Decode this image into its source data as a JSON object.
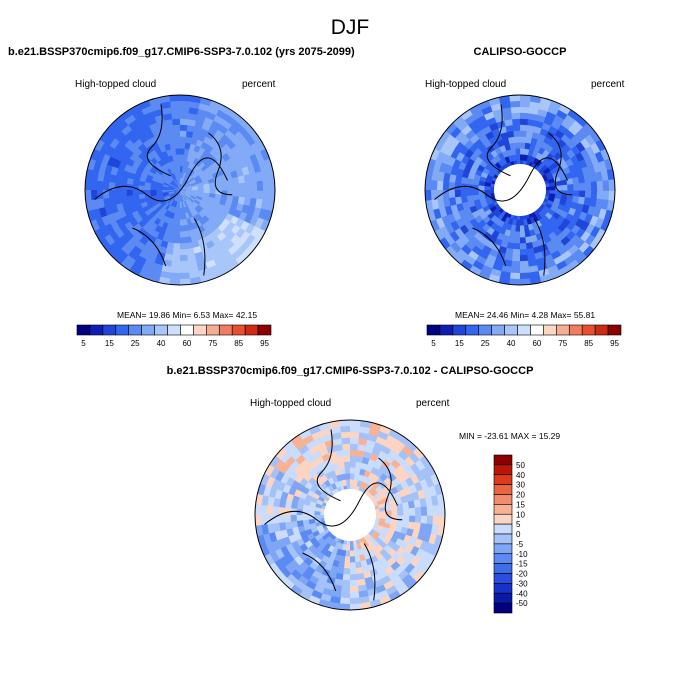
{
  "figure": {
    "title": "DJF"
  },
  "colors": {
    "base_palette": [
      "#000080",
      "#0e1eb4",
      "#1f46d8",
      "#3366f0",
      "#5a8af2",
      "#82aaf6",
      "#a8c6fa",
      "#cfe0fc",
      "#ffffff",
      "#fbd6c4",
      "#f6ae92",
      "#f07e5e",
      "#e8502d",
      "#cf2a13",
      "#8c0000"
    ],
    "diff_palette": [
      "#000080",
      "#0a1aa8",
      "#1632c8",
      "#2a4ee0",
      "#3f6cea",
      "#5a8af2",
      "#7ea6f4",
      "#a4c2f8",
      "#cadcfc",
      "#fbd4c2",
      "#f7b195",
      "#f18d6a",
      "#ea6640",
      "#dd3b1c",
      "#bc1608",
      "#8c0000"
    ]
  },
  "chart_data": [
    {
      "type": "heatmap",
      "projection": "north-polar-stereographic",
      "case_label": "b.e21.BSSP370cmip6.f09_g17.CMIP6-SSP3-7.0.102 (yrs 2075-2099)",
      "variable": "High-topped cloud",
      "units": "percent",
      "stats": {
        "text": "MEAN=  19.86  Min=   6.53  Max=  42.15",
        "mean": 19.86,
        "min": 6.53,
        "max": 42.15
      },
      "colorbar": {
        "orientation": "horizontal",
        "ticks": [
          "5",
          "15",
          "25",
          "40",
          "60",
          "75",
          "85",
          "95"
        ]
      }
    },
    {
      "type": "heatmap",
      "projection": "north-polar-stereographic",
      "case_label": "CALIPSO-GOCCP",
      "variable": "High-topped cloud",
      "units": "percent",
      "stats": {
        "text": "MEAN=  24.46  Min=   4.28  Max=  55.81",
        "mean": 24.46,
        "min": 4.28,
        "max": 55.81
      },
      "colorbar": {
        "orientation": "horizontal",
        "ticks": [
          "5",
          "15",
          "25",
          "40",
          "60",
          "75",
          "85",
          "95"
        ]
      }
    },
    {
      "type": "heatmap",
      "projection": "north-polar-stereographic",
      "case_label": "b.e21.BSSP370cmip6.f09_g17.CMIP6-SSP3-7.0.102 - CALIPSO-GOCCP",
      "variable": "High-topped cloud",
      "units": "percent",
      "stats": {
        "text": "MIN = -23.61 MAX =  15.29",
        "min": -23.61,
        "max": 15.29
      },
      "colorbar": {
        "orientation": "vertical",
        "ticks": [
          "50",
          "40",
          "30",
          "20",
          "15",
          "10",
          "5",
          "0",
          "-5",
          "-10",
          "-15",
          "-20",
          "-30",
          "-40",
          "-50"
        ]
      }
    }
  ]
}
